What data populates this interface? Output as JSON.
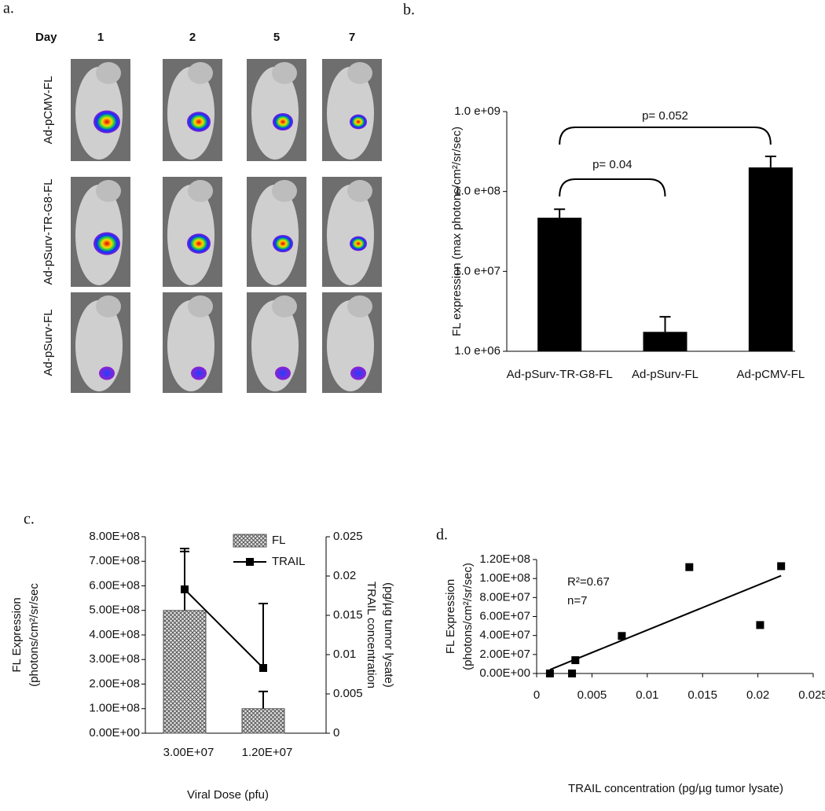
{
  "panel_a": {
    "label": "a.",
    "header": "Day",
    "days": [
      "1",
      "2",
      "5",
      "7"
    ],
    "rows": [
      "Ad-pCMV-FL",
      "Ad-pSurv-TR-G8-FL",
      "Ad-pSurv-FL"
    ]
  },
  "chart_data": [
    {
      "panel_label": "b.",
      "type": "bar",
      "log_scale": true,
      "categories": [
        "Ad-pSurv-TR-G8-FL",
        "Ad-pSurv-FL",
        "Ad-pCMV-FL"
      ],
      "values": [
        47000000,
        1750000,
        200000000
      ],
      "errors": [
        13000000,
        950000,
        75000000
      ],
      "color": "#000000",
      "ylabel": "FL expression (max photons/cm²/sr/sec)",
      "ylim": [
        1000000,
        1000000000
      ],
      "yticks": [
        {
          "value": 1000000,
          "label": "1.0 e+06"
        },
        {
          "value": 10000000,
          "label": "1.0 e+07"
        },
        {
          "value": 100000000,
          "label": "1.0 e+08"
        },
        {
          "value": 1000000000,
          "label": "1.0 e+09"
        }
      ],
      "annotations": [
        "p= 0.04",
        "p= 0.052"
      ]
    },
    {
      "panel_label": "c.",
      "type": "combo",
      "categories": [
        "3.00E+07",
        "1.20E+07"
      ],
      "series": [
        {
          "name": "FL",
          "type": "bar",
          "color": "#555555",
          "values": [
            500000000,
            100000000
          ],
          "errors": [
            240000000,
            70000000
          ]
        },
        {
          "name": "TRAIL",
          "type": "line",
          "axis": "y2",
          "color": "#000000",
          "values": [
            0.0183,
            0.0083
          ],
          "errors": [
            0.0052,
            0.0082
          ]
        }
      ],
      "xlabel": "Viral Dose (pfu)",
      "ylabel": [
        "FL Expression",
        "(photons/cm²/sr/sec"
      ],
      "y2label": [
        "TRAIL concentration",
        "(pg/µg tumor lysate)"
      ],
      "ylim": [
        0,
        800000000
      ],
      "yticks": [
        {
          "value": 0,
          "label": "0.00E+00"
        },
        {
          "value": 100000000,
          "label": "1.00E+08"
        },
        {
          "value": 200000000,
          "label": "2.00E+08"
        },
        {
          "value": 300000000,
          "label": "3.00E+08"
        },
        {
          "value": 400000000,
          "label": "4.00E+08"
        },
        {
          "value": 500000000,
          "label": "5.00E+08"
        },
        {
          "value": 600000000,
          "label": "6.00E+08"
        },
        {
          "value": 700000000,
          "label": "7.00E+08"
        },
        {
          "value": 800000000,
          "label": "8.00E+08"
        }
      ],
      "y2lim": [
        0,
        0.025
      ],
      "y2ticks": [
        0,
        0.005,
        0.01,
        0.015,
        0.02,
        0.025
      ]
    },
    {
      "panel_label": "d.",
      "type": "scatter",
      "color": "#000000",
      "x": [
        0.0012,
        0.0032,
        0.0035,
        0.0077,
        0.0138,
        0.0202,
        0.0221
      ],
      "values": [
        0,
        0,
        14000000,
        39500000,
        112000000,
        51000000,
        113000000
      ],
      "trendline": {
        "x": [
          0.0012,
          0.0221
        ],
        "values": [
          4000000,
          103000000
        ]
      },
      "annotations": [
        "R²=0.67",
        "n=7"
      ],
      "xlabel": "TRAIL concentration (pg/µg tumor lysate)",
      "ylabel": [
        "FL Expression",
        "(photons/cm²/sr/sec)"
      ],
      "xlim": [
        0,
        0.025
      ],
      "xticks": [
        0,
        0.005,
        0.01,
        0.015,
        0.02,
        0.025
      ],
      "ylim": [
        0,
        120000000
      ],
      "yticks": [
        {
          "value": 0,
          "label": "0.00E+00"
        },
        {
          "value": 20000000,
          "label": "2.00E+07"
        },
        {
          "value": 40000000,
          "label": "4.00E+07"
        },
        {
          "value": 60000000,
          "label": "6.00E+07"
        },
        {
          "value": 80000000,
          "label": "8.00E+07"
        },
        {
          "value": 100000000,
          "label": "1.00E+08"
        },
        {
          "value": 120000000,
          "label": "1.20E+08"
        }
      ]
    }
  ]
}
